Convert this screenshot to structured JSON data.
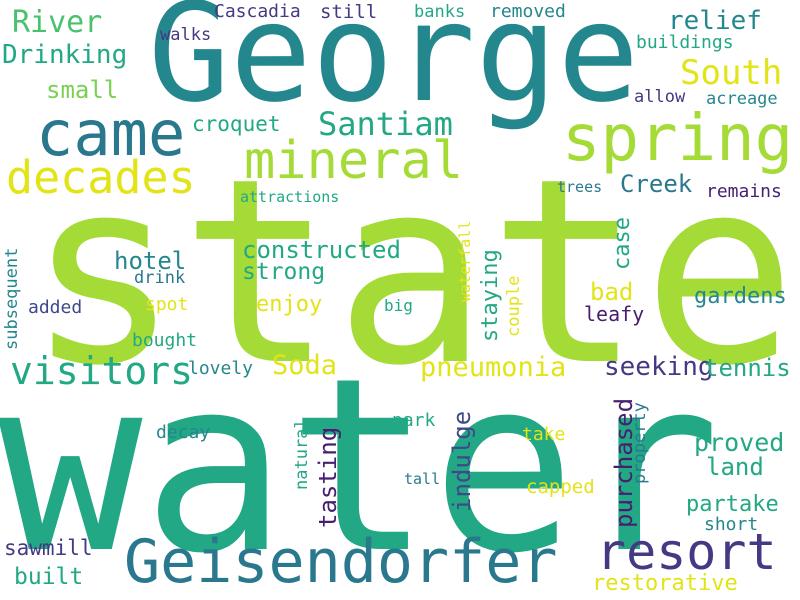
{
  "colors": {
    "background": "#ffffff",
    "lime": "#a5db36",
    "yellow": "#e2e418",
    "teal": "#24878e",
    "green": "#22a884",
    "blue": "#2a788e",
    "navy": "#3e4989",
    "indigo": "#443983",
    "purple": "#481f70",
    "mint": "#4ac16d",
    "leaf": "#7ad151"
  },
  "words": {
    "state": "state",
    "water": "water",
    "george": "George",
    "came": "came",
    "spring": "spring",
    "mineral": "mineral",
    "decades": "decades",
    "geisendorfer": "Geisendorfer",
    "resort": "resort",
    "visitors": "visitors",
    "river": "River",
    "drinking": "Drinking",
    "santiam": "Santiam",
    "south": "South",
    "relief": "relief",
    "creek": "Creek",
    "pneumonia": "pneumonia",
    "seeking": "seeking",
    "constructed": "constructed",
    "strong": "strong",
    "hotel": "hotel",
    "soda": "Soda",
    "tennis": "tennis",
    "gardens": "gardens",
    "enjoy": "enjoy",
    "proved": "proved",
    "land": "land",
    "partake": "partake",
    "short": "short",
    "restorative": "restorative",
    "sawmill": "sawmill",
    "built": "built",
    "bad": "bad",
    "leafy": "leafy",
    "croquet": "croquet",
    "small": "small",
    "cascadia": "Cascadia",
    "still": "still",
    "banks": "banks",
    "removed": "removed",
    "walks": "walks",
    "buildings": "buildings",
    "allow": "allow",
    "acreage": "acreage",
    "attractions": "attractions",
    "trees": "trees",
    "remains": "remains",
    "drink": "drink",
    "spot": "spot",
    "added": "added",
    "bought": "bought",
    "lovely": "lovely",
    "big": "big",
    "decay": "decay",
    "park": "park",
    "take": "take",
    "tall": "tall",
    "capped": "capped",
    "subsequent": "subsequent",
    "waterfall": "waterfall",
    "couple": "couple",
    "staying": "staying",
    "case": "case",
    "indulge": "indulge",
    "tasting": "tasting",
    "purchased": "purchased",
    "property": "property",
    "natural": "natural"
  }
}
